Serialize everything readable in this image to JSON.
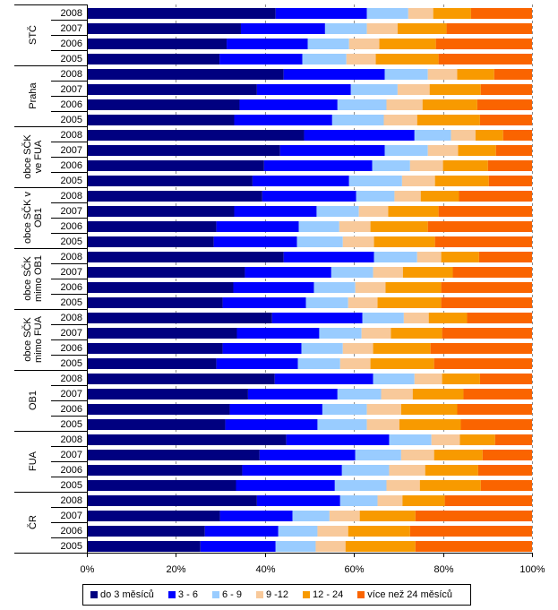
{
  "chart_data": {
    "type": "bar",
    "orientation": "horizontal",
    "stacking": "percent",
    "title": "",
    "xlabel": "",
    "ylabel": "",
    "xlim": [
      0,
      100
    ],
    "x_ticks": [
      "0%",
      "20%",
      "40%",
      "60%",
      "80%",
      "100%"
    ],
    "grid": "vertical dashed at 20% steps",
    "legend_position": "bottom",
    "series": [
      {
        "name": "do 3 měsíců",
        "color": "#000080"
      },
      {
        "name": "3 - 6",
        "color": "#0000FF"
      },
      {
        "name": "6 - 9",
        "color": "#99CCFF"
      },
      {
        "name": "9 -12",
        "color": "#F8C99A"
      },
      {
        "name": "12 - 24",
        "color": "#F89A00"
      },
      {
        "name": "více než 24 měsíců",
        "color": "#FA6400"
      }
    ],
    "groups": [
      {
        "label": [
          "STČ"
        ],
        "rows": [
          {
            "year": "2008",
            "values": [
              42.4,
              20.5,
              9.3,
              5.6,
              8.5,
              13.7
            ]
          },
          {
            "year": "2007",
            "values": [
              34.6,
              18.9,
              9.4,
              6.9,
              11.0,
              19.2
            ]
          },
          {
            "year": "2006",
            "values": [
              31.4,
              18.2,
              9.3,
              6.8,
              12.7,
              21.6
            ]
          },
          {
            "year": "2005",
            "values": [
              29.8,
              18.6,
              9.9,
              6.6,
              14.1,
              21.0
            ]
          }
        ]
      },
      {
        "label": [
          "Praha"
        ],
        "rows": [
          {
            "year": "2008",
            "values": [
              44.2,
              22.7,
              9.7,
              6.6,
              8.3,
              8.5
            ]
          },
          {
            "year": "2007",
            "values": [
              38.2,
              21.1,
              10.5,
              7.2,
              11.5,
              11.5
            ]
          },
          {
            "year": "2006",
            "values": [
              34.3,
              22.0,
              11.0,
              8.1,
              12.3,
              12.3
            ]
          },
          {
            "year": "2005",
            "values": [
              33.1,
              22.0,
              11.6,
              7.5,
              14.1,
              11.7
            ]
          }
        ]
      },
      {
        "label": [
          "obce SČK",
          "ve FUA"
        ],
        "rows": [
          {
            "year": "2008",
            "values": [
              48.8,
              24.8,
              8.2,
              5.5,
              6.2,
              6.5
            ]
          },
          {
            "year": "2007",
            "values": [
              43.4,
              23.5,
              9.7,
              6.8,
              8.5,
              8.1
            ]
          },
          {
            "year": "2006",
            "values": [
              39.8,
              24.3,
              8.5,
              7.4,
              10.1,
              9.9
            ]
          },
          {
            "year": "2005",
            "values": [
              37.2,
              21.7,
              11.9,
              7.4,
              12.1,
              9.7
            ]
          }
        ]
      },
      {
        "label": [
          "obce SČK v",
          "OB1"
        ],
        "rows": [
          {
            "year": "2008",
            "values": [
              39.4,
              21.1,
              8.6,
              5.9,
              8.6,
              16.4
            ]
          },
          {
            "year": "2007",
            "values": [
              33.1,
              18.5,
              9.5,
              6.6,
              11.3,
              21.0
            ]
          },
          {
            "year": "2006",
            "values": [
              29.1,
              18.5,
              9.1,
              7.0,
              12.9,
              23.4
            ]
          },
          {
            "year": "2005",
            "values": [
              28.5,
              18.7,
              10.3,
              7.0,
              13.7,
              21.8
            ]
          }
        ]
      },
      {
        "label": [
          "obce SČK",
          "mimo OB1"
        ],
        "rows": [
          {
            "year": "2008",
            "values": [
              44.2,
              20.3,
              9.7,
              5.4,
              8.5,
              11.9
            ]
          },
          {
            "year": "2007",
            "values": [
              35.5,
              19.4,
              9.4,
              6.7,
              11.2,
              17.8
            ]
          },
          {
            "year": "2006",
            "values": [
              32.9,
              18.1,
              9.3,
              6.8,
              12.5,
              20.4
            ]
          },
          {
            "year": "2005",
            "values": [
              30.5,
              18.7,
              9.5,
              6.6,
              14.3,
              20.4
            ]
          }
        ]
      },
      {
        "label": [
          "obce SČK",
          "mimo FUA"
        ],
        "rows": [
          {
            "year": "2008",
            "values": [
              41.6,
              20.3,
              9.3,
              5.6,
              8.6,
              14.6
            ]
          },
          {
            "year": "2007",
            "values": [
              33.7,
              18.5,
              9.5,
              6.6,
              11.5,
              20.2
            ]
          },
          {
            "year": "2006",
            "values": [
              30.5,
              17.7,
              9.3,
              6.8,
              12.9,
              22.8
            ]
          },
          {
            "year": "2005",
            "values": [
              29.1,
              18.3,
              9.5,
              6.8,
              14.3,
              22.0
            ]
          }
        ]
      },
      {
        "label": [
          "OB1"
        ],
        "rows": [
          {
            "year": "2008",
            "values": [
              42.2,
              22.1,
              9.3,
              6.2,
              8.5,
              11.7
            ]
          },
          {
            "year": "2007",
            "values": [
              36.2,
              20.1,
              9.8,
              7.1,
              11.4,
              15.4
            ]
          },
          {
            "year": "2006",
            "values": [
              32.1,
              20.8,
              10.0,
              7.7,
              12.6,
              16.8
            ]
          },
          {
            "year": "2005",
            "values": [
              31.1,
              20.7,
              11.1,
              7.3,
              13.8,
              16.0
            ]
          }
        ]
      },
      {
        "label": [
          "FUA"
        ],
        "rows": [
          {
            "year": "2008",
            "values": [
              44.8,
              23.1,
              9.5,
              6.4,
              7.9,
              8.3
            ]
          },
          {
            "year": "2007",
            "values": [
              38.8,
              21.5,
              10.3,
              7.4,
              10.9,
              11.1
            ]
          },
          {
            "year": "2006",
            "values": [
              34.9,
              22.4,
              10.6,
              8.1,
              11.9,
              12.1
            ]
          },
          {
            "year": "2005",
            "values": [
              33.5,
              22.2,
              11.6,
              7.5,
              13.7,
              11.5
            ]
          }
        ]
      },
      {
        "label": [
          "ČR"
        ],
        "rows": [
          {
            "year": "2008",
            "values": [
              38.2,
              18.7,
              8.4,
              5.6,
              9.5,
              19.6
            ]
          },
          {
            "year": "2007",
            "values": [
              29.9,
              16.3,
              8.3,
              6.8,
              12.5,
              26.2
            ]
          },
          {
            "year": "2006",
            "values": [
              26.5,
              16.5,
              8.8,
              6.9,
              13.9,
              27.4
            ]
          },
          {
            "year": "2005",
            "values": [
              25.5,
              16.9,
              9.0,
              6.7,
              15.7,
              26.2
            ]
          }
        ]
      }
    ]
  },
  "legend": {
    "items": [
      {
        "label": "do 3 měsíců",
        "color": "#000080"
      },
      {
        "label": "3 - 6",
        "color": "#0000FF"
      },
      {
        "label": "6 - 9",
        "color": "#99CCFF"
      },
      {
        "label": "9 -12",
        "color": "#F8C99A"
      },
      {
        "label": "12 - 24",
        "color": "#F89A00"
      },
      {
        "label": "více než 24 měsíců",
        "color": "#FA6400"
      }
    ]
  }
}
